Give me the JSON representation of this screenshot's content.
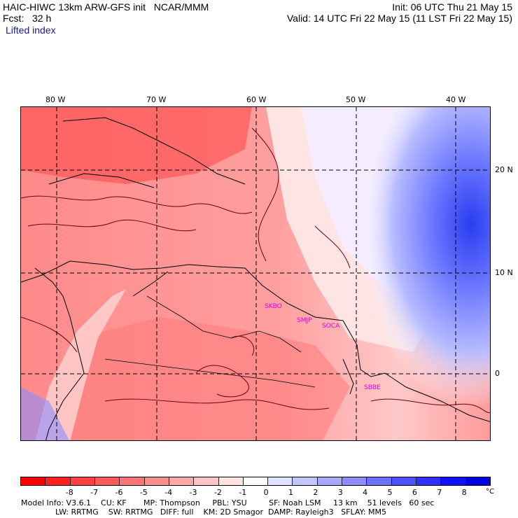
{
  "header": {
    "model_line": "HAIC-HIWC 13km ARW-GFS init   NCAR/MMM",
    "fcst_line": "Fcst:   32 h",
    "field_name": "Lifted index",
    "init_line": "Init: 06 UTC Thu 21 May 15",
    "valid_line": "Valid: 14 UTC Fri 22 May 15 (11 LST Fri 22 May 15)"
  },
  "map": {
    "lon_labels": [
      "80 W",
      "70 W",
      "60 W",
      "50 W",
      "40 W"
    ],
    "lat_labels": [
      "20 N",
      "10 N",
      "0"
    ],
    "station_labels": [
      "SKBO",
      "SMJP",
      "SOCA",
      "SBBE"
    ],
    "colors": {
      "land_outline": "#000000",
      "contour": "#6b0010",
      "station": "#e000e0"
    }
  },
  "colorbar": {
    "colors": [
      "#ff0000",
      "#ff2020",
      "#ff4040",
      "#ff5a5a",
      "#ff7474",
      "#ff8e8e",
      "#ffa8a8",
      "#ffc4c4",
      "#ffe2e2",
      "#ffffff",
      "#e0e0ff",
      "#c4c4ff",
      "#a8a8ff",
      "#8c8cff",
      "#7070ff",
      "#5050ff",
      "#3030ff",
      "#1010ff",
      "#0000e0"
    ],
    "tick_labels": [
      "-8",
      "-7",
      "-6",
      "-5",
      "-4",
      "-3",
      "-2",
      "-1",
      "0",
      "1",
      "2",
      "3",
      "4",
      "5",
      "6",
      "7",
      "8"
    ],
    "unit": "°C"
  },
  "footer": {
    "line1": "Model Info: V3.6.1    CU: KF       MP: Thompson     PBL: YSU         SF: Noah LSM     13 km    51 levels   60 sec",
    "line2": "              LW: RRTMG    SW: RRTMG   DIFF: full    KM: 2D Smagor  DAMP: Rayleigh3   SFLAY: MM5"
  }
}
